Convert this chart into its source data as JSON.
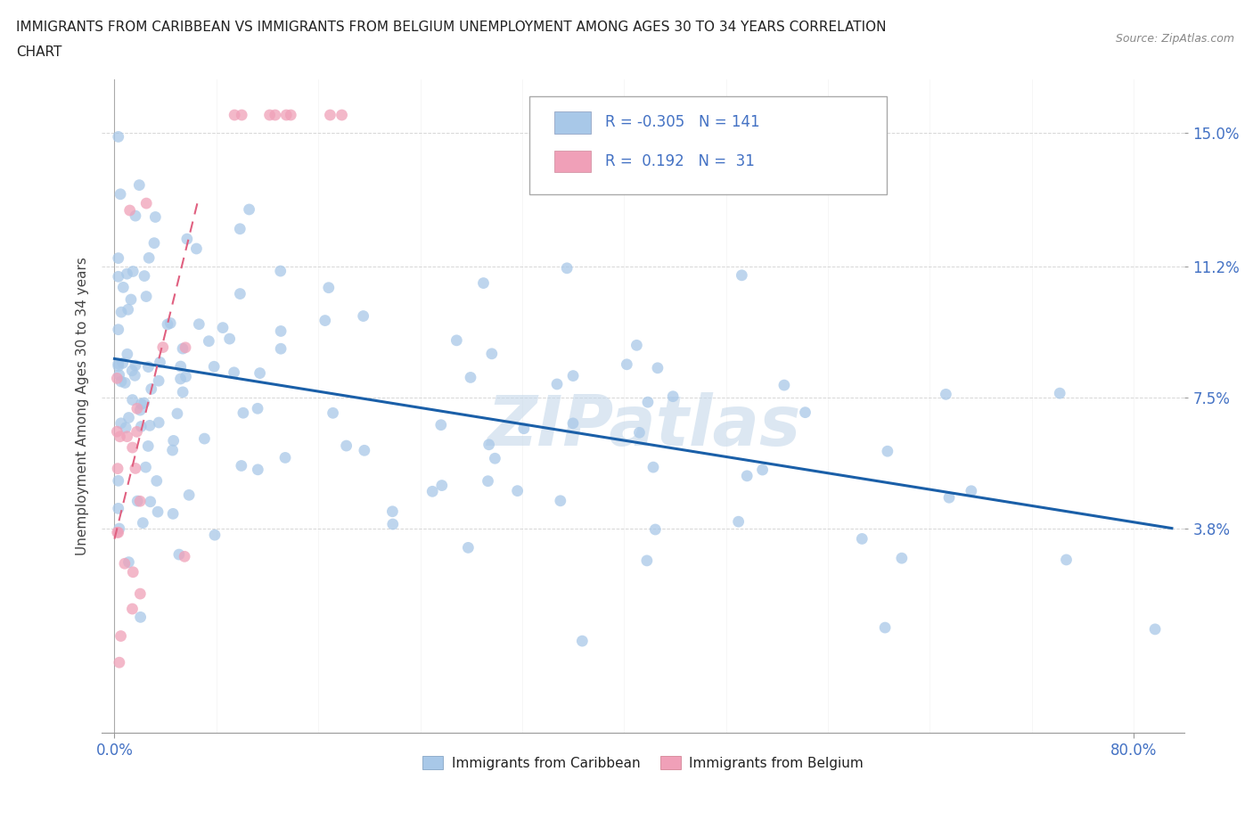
{
  "title_line1": "IMMIGRANTS FROM CARIBBEAN VS IMMIGRANTS FROM BELGIUM UNEMPLOYMENT AMONG AGES 30 TO 34 YEARS CORRELATION",
  "title_line2": "CHART",
  "source_text": "Source: ZipAtlas.com",
  "ylabel": "Unemployment Among Ages 30 to 34 years",
  "xticklabels_bottom": [
    "0.0%",
    "80.0%"
  ],
  "xtick_bottom_values": [
    0.0,
    0.8
  ],
  "ytick_values": [
    0.038,
    0.075,
    0.112,
    0.15
  ],
  "yticklabels": [
    "3.8%",
    "7.5%",
    "11.2%",
    "15.0%"
  ],
  "xlim": [
    -0.01,
    0.84
  ],
  "ylim": [
    -0.02,
    0.165
  ],
  "r_caribbean": -0.305,
  "n_caribbean": 141,
  "r_belgium": 0.192,
  "n_belgium": 31,
  "color_caribbean": "#a8c8e8",
  "color_belgium": "#f0a0b8",
  "line_color_caribbean": "#1a5fa8",
  "line_color_belgium": "#e06080",
  "watermark_text": "ZIPatlas",
  "watermark_color": "#c5d8ea",
  "background_color": "#ffffff",
  "grid_color": "#cccccc",
  "title_color": "#222222",
  "tick_label_color": "#4472c4",
  "legend_label_color": "#4472c4",
  "carib_line_x0": 0.0,
  "carib_line_x1": 0.83,
  "carib_line_y0": 0.086,
  "carib_line_y1": 0.038,
  "belg_line_x0": 0.0,
  "belg_line_x1": 0.065,
  "belg_line_y0": 0.035,
  "belg_line_y1": 0.13
}
